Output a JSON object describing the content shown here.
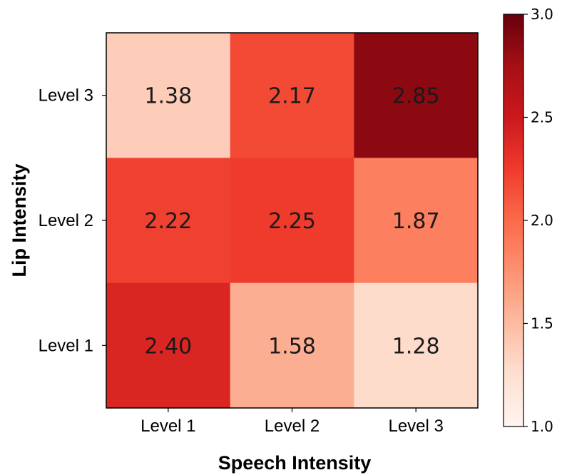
{
  "chart_data": {
    "type": "heatmap",
    "title": "",
    "xlabel": "Speech Intensity",
    "ylabel": "Lip Intensity",
    "x_categories": [
      "Level 1",
      "Level 2",
      "Level 3"
    ],
    "y_categories": [
      "Level 3",
      "Level 2",
      "Level 1"
    ],
    "values": [
      [
        1.38,
        2.17,
        2.85
      ],
      [
        2.22,
        2.25,
        1.87
      ],
      [
        2.4,
        1.58,
        1.28
      ]
    ],
    "value_labels": [
      [
        "1.38",
        "2.17",
        "2.85"
      ],
      [
        "2.22",
        "2.25",
        "1.87"
      ],
      [
        "2.40",
        "1.58",
        "1.28"
      ]
    ],
    "colormap": "Reds",
    "colormap_stops": [
      "#fff5f0",
      "#fee0d2",
      "#fcbba1",
      "#fc9272",
      "#fb6a4a",
      "#ef3b2c",
      "#cb181d",
      "#a50f15",
      "#67000d"
    ],
    "colorbar": {
      "range": [
        1.0,
        3.0
      ],
      "ticks": [
        1.0,
        1.5,
        2.0,
        2.5,
        3.0
      ],
      "tick_labels": [
        "1.0",
        "1.5",
        "2.0",
        "2.5",
        "3.0"
      ]
    }
  }
}
